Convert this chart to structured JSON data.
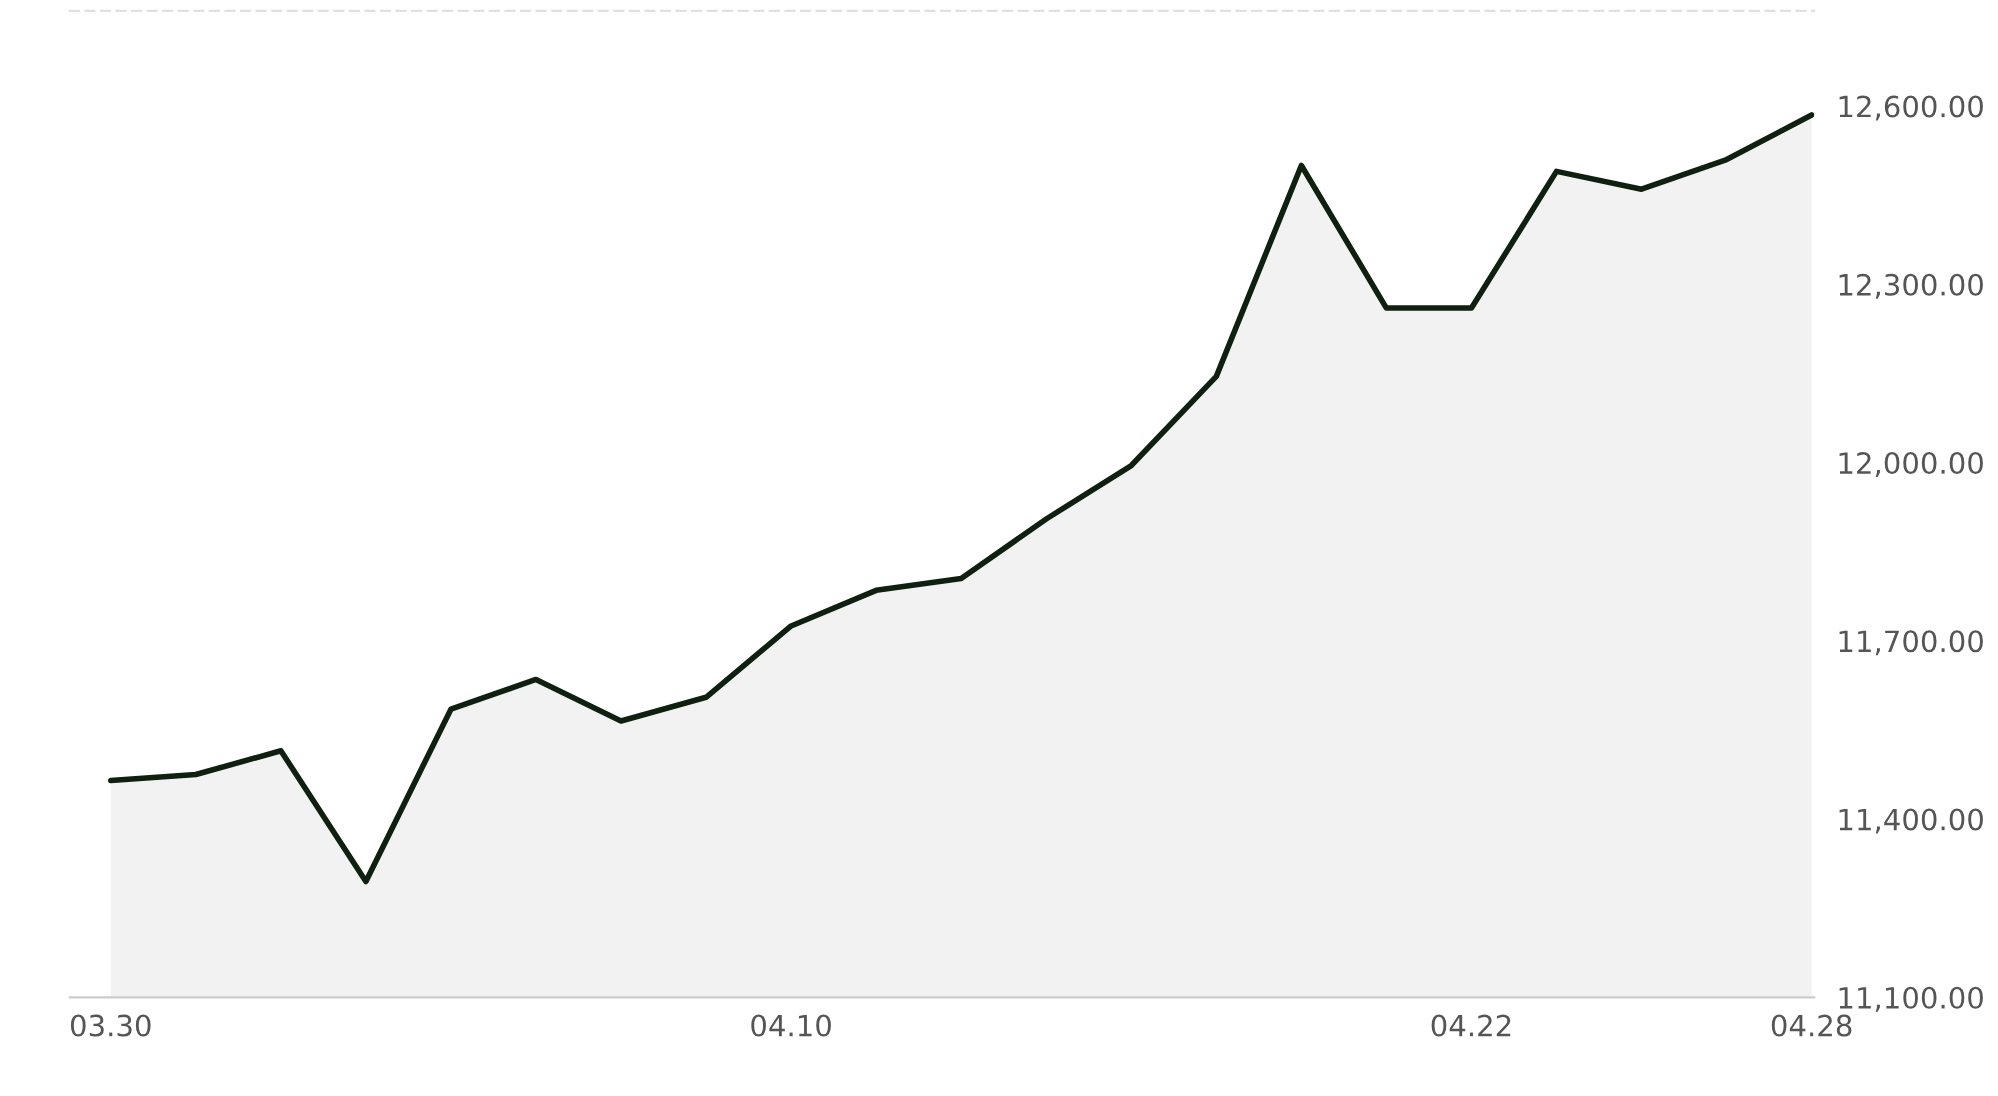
{
  "chart_data": {
    "type": "area",
    "categories": [
      "03.30",
      null,
      null,
      null,
      null,
      null,
      null,
      null,
      "04.10",
      null,
      null,
      null,
      null,
      null,
      null,
      null,
      "04.22",
      null,
      null,
      null,
      "04.28"
    ],
    "series": [
      {
        "color": "#0f1f10",
        "values": [
          11465,
          11475,
          11515,
          11295,
          11585,
          11635,
          11565,
          11605,
          11725,
          11785,
          11805,
          11905,
          11995,
          12145,
          12500,
          12260,
          12260,
          12490,
          12460,
          12510,
          12585
        ]
      }
    ],
    "ylim": [
      11100,
      12760
    ],
    "yticks": [
      {
        "value": 11100,
        "label": "11,100.00"
      },
      {
        "value": 11400,
        "label": "11,400.00"
      },
      {
        "value": 11700,
        "label": "11,700.00"
      },
      {
        "value": 12000,
        "label": "12,000.00"
      },
      {
        "value": 12300,
        "label": "12,300.00"
      },
      {
        "value": 12600,
        "label": "12,600.00"
      }
    ],
    "grid": false,
    "legend": false
  }
}
